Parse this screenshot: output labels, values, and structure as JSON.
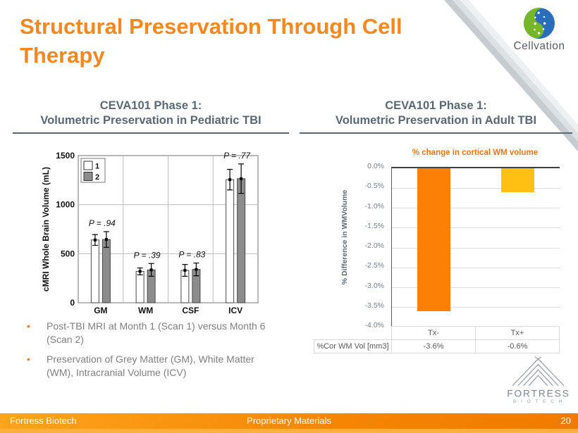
{
  "slide": {
    "title_lines": [
      "Structural Preservation Through Cell",
      "Therapy"
    ],
    "page_number": "20",
    "footer": {
      "left": "Fortress Biotech",
      "center": "Proprietary Materials"
    },
    "logos": {
      "cellvation": "Cellvation",
      "fortress_line1": "FORTRESS",
      "fortress_line2": "B I O T E C H"
    },
    "colors": {
      "title_orange": "#F6881F",
      "header_slate": "#5A6874",
      "bullet_text_gray": "#7F7F7F",
      "bullet_dot_orange": "#E8801E",
      "footer_orange": "#F58503",
      "adult_chart_title_orange": "#E8771E",
      "bar_tx_minus_orange": "#FB8005",
      "bar_tx_plus_gold": "#FFC013",
      "pediatric_bar_gray": "#8C8C8C"
    }
  },
  "left_panel": {
    "header_line1": "CEVA101 Phase 1:",
    "header_line2": "Volumetric Preservation in Pediatric TBI",
    "bullets": [
      "Post-TBI MRI at Month 1 (Scan 1) versus Month 6 (Scan 2)",
      "Preservation of Grey Matter (GM), White Matter (WM), Intracranial Volume (ICV)"
    ]
  },
  "right_panel": {
    "header_line1": "CEVA101 Phase 1:",
    "header_line2": "Volumetric Preservation in Adult TBI"
  },
  "chart_data": [
    {
      "id": "pediatric-tbi-volumes",
      "type": "bar",
      "title": "",
      "ylabel": "cMRI Whole Brain Volume (mL)",
      "ylim": [
        0,
        1500
      ],
      "yticks": [
        0,
        500,
        1000,
        1500
      ],
      "categories": [
        "GM",
        "WM",
        "CSF",
        "ICV"
      ],
      "legend": [
        "1",
        "2"
      ],
      "grid": true,
      "series": [
        {
          "name": "1",
          "values": [
            640,
            320,
            330,
            1255
          ],
          "errors": [
            55,
            35,
            60,
            105
          ],
          "fill": "#ffffff"
        },
        {
          "name": "2",
          "values": [
            645,
            335,
            340,
            1265
          ],
          "errors": [
            80,
            65,
            65,
            150
          ],
          "fill": "#8C8C8C"
        }
      ],
      "p_labels": [
        "P = .94",
        "P = .39",
        "P = .83",
        "P = .77"
      ]
    },
    {
      "id": "adult-tbi-wm-change",
      "type": "bar",
      "title": "% change in cortical WM volume",
      "ylabel": "% Difference in WMVolume",
      "ylim": [
        -4.0,
        0.0
      ],
      "ytick_labels": [
        "0.0%",
        "-0.5%",
        "-1.0%",
        "-1.5%",
        "-2.0%",
        "-2.5%",
        "-3.0%",
        "-3.5%",
        "-4.0%"
      ],
      "categories": [
        "Tx-",
        "Tx+"
      ],
      "values": [
        -3.6,
        -0.6
      ],
      "bar_colors": [
        "#FB8005",
        "#FFC013"
      ],
      "grid": true,
      "table": {
        "row_label": "%Cor WM Vol [mm3]",
        "values": [
          "-3.6%",
          "-0.6%"
        ]
      }
    }
  ]
}
